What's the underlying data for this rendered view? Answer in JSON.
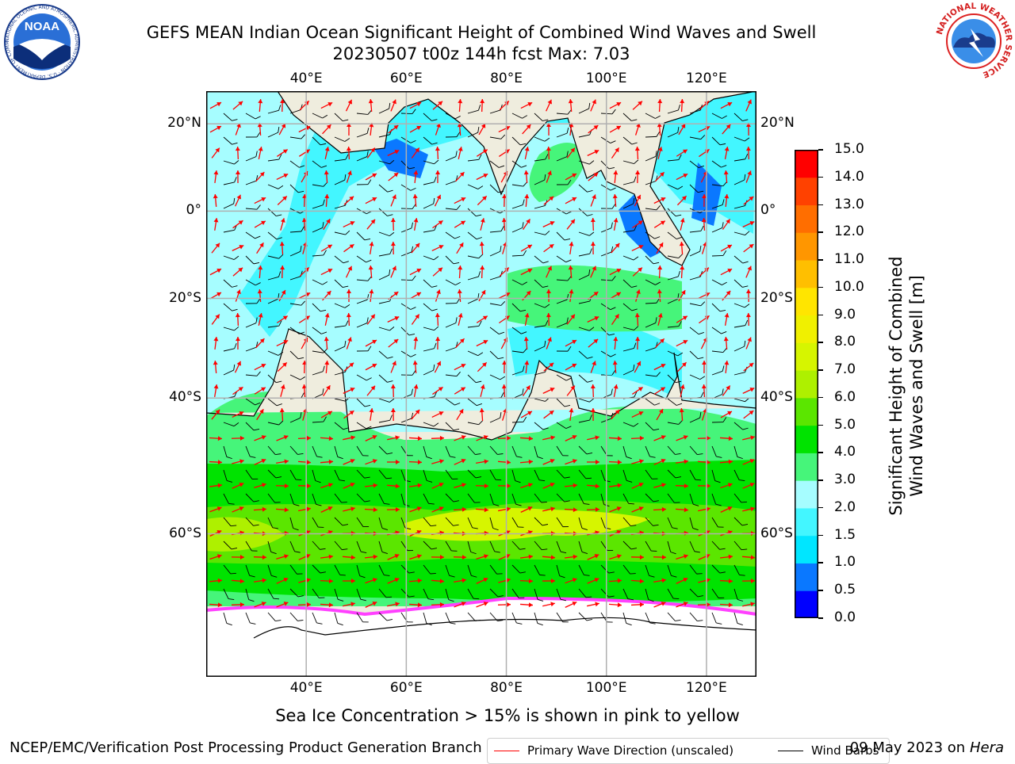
{
  "header": {
    "title_line1": "GEFS MEAN Indian Ocean Significant Height of Combined Wind Waves and Swell",
    "title_line2": "20230507 t00z 144h fcst   Max: 7.03"
  },
  "logos": {
    "noaa_text": "NOAA",
    "noaa_ring": "NATIONAL OCEANIC AND ATMOSPHERIC ADMINISTRATION · U.S. DEPARTMENT OF COMMERCE",
    "nws_ring": "NATIONAL WEATHER SERVICE"
  },
  "map": {
    "lon_labels": [
      "40°E",
      "60°E",
      "80°E",
      "100°E",
      "120°E"
    ],
    "lat_labels": [
      "20°N",
      "0°",
      "20°S",
      "40°S",
      "60°S"
    ],
    "lon_values": [
      40,
      60,
      80,
      100,
      120
    ],
    "lat_values": [
      20,
      0,
      -20,
      -40,
      -60
    ],
    "extent": {
      "lon": [
        20,
        130
      ],
      "lat": [
        -73,
        27
      ]
    },
    "land_color": "#efedde",
    "ice_colors": [
      "#ff40ff",
      "#ff9f00",
      "#ffff00"
    ]
  },
  "legend": {
    "wave_label": "Primary Wave Direction (unscaled)",
    "wave_color": "#ff0000",
    "wind_label": "Wind Barbs",
    "wind_color": "#000000"
  },
  "colorbar": {
    "label_line1": "Significant Height of Combined",
    "label_line2": "Wind Waves and Swell [m]",
    "ticks": [
      "0.0",
      "0.5",
      "1.0",
      "1.5",
      "2.0",
      "3.0",
      "4.0",
      "5.0",
      "6.0",
      "7.0",
      "8.0",
      "9.0",
      "10.0",
      "11.0",
      "12.0",
      "13.0",
      "14.0",
      "15.0"
    ],
    "colors": [
      "#0000ff",
      "#0a78ff",
      "#00e6ff",
      "#43f6ff",
      "#a6fdff",
      "#46f57a",
      "#00e300",
      "#5be600",
      "#aef000",
      "#d6f500",
      "#f0f000",
      "#ffe500",
      "#ffbf00",
      "#ff9600",
      "#ff6e00",
      "#ff4100",
      "#ff0000"
    ]
  },
  "footer": {
    "ice_note": "Sea Ice Concentration > 15% is shown in pink to yellow",
    "branch": "NCEP/EMC/Verification Post Processing Product Generation Branch",
    "date": "09 May 2023 on",
    "machine": "Hera"
  }
}
